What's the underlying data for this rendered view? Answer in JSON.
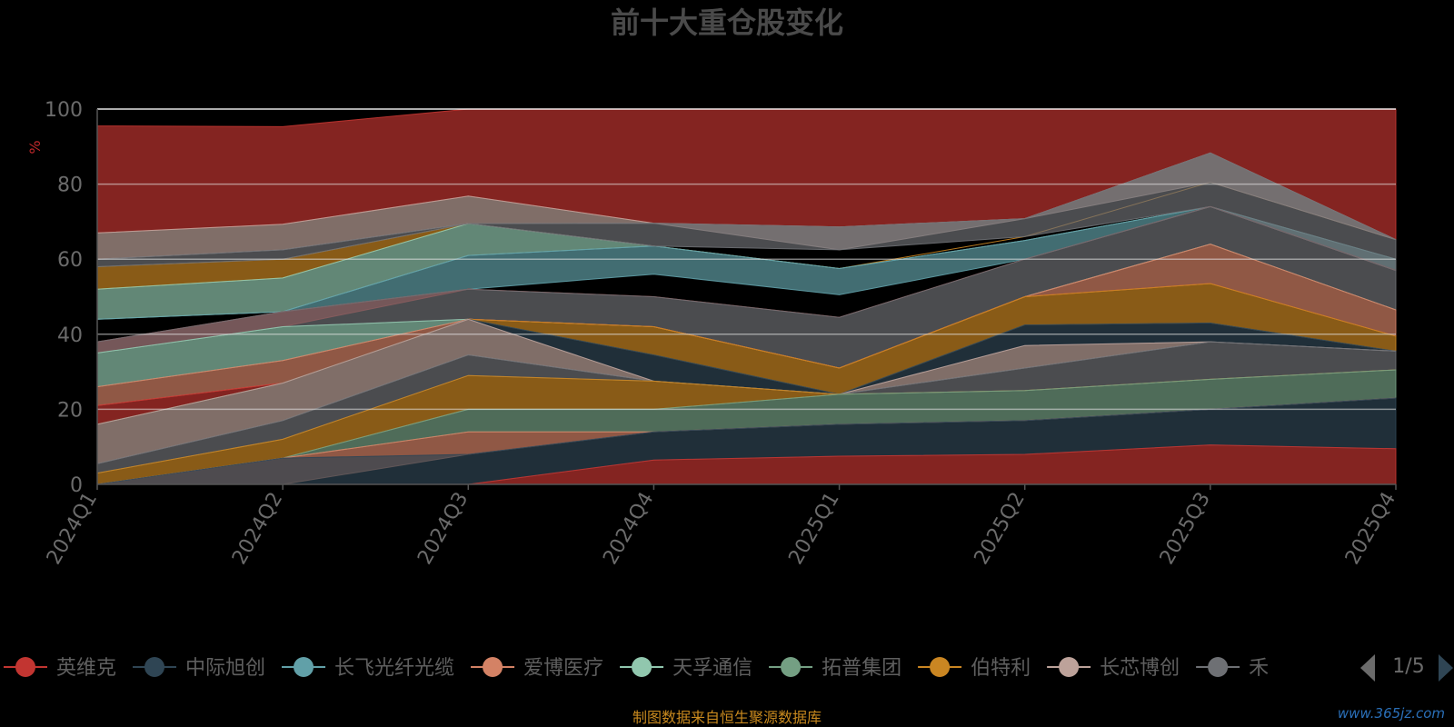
{
  "chart_data": {
    "type": "area",
    "title": "前十大重仓股变化",
    "ylabel": "%",
    "ylim": [
      0,
      100
    ],
    "yticks": [
      0,
      20,
      40,
      60,
      80,
      100
    ],
    "categories": [
      "2024Q1",
      "2024Q2",
      "2024Q3",
      "2024Q4",
      "2025Q1",
      "2025Q2",
      "2025Q3",
      "2025Q4"
    ],
    "stacked": true,
    "grid": true,
    "legend_position": "bottom",
    "bands": [
      {
        "color": "#c23531",
        "upper": [
          95.5,
          95.3,
          100,
          100,
          100,
          100,
          100,
          100
        ],
        "lower": [
          67.0,
          69.3,
          76.8,
          69.6,
          68.6,
          70.8,
          88.3,
          65.2
        ]
      },
      {
        "color": "#ca8622",
        "upper": [
          58.0,
          60.0,
          69.5,
          63.5,
          57.5,
          66.0,
          80.5,
          65.2
        ],
        "lower": [
          52.0,
          55.0,
          69.5,
          63.5,
          57.5,
          66.0,
          80.5,
          65.2
        ]
      },
      {
        "color": "#91c7ae",
        "upper": [
          52.0,
          55.0,
          69.5,
          63.5,
          57.5,
          65.0,
          74.0,
          60.0
        ],
        "lower": [
          44.0,
          46.0,
          61.0,
          63.5,
          57.5,
          65.0,
          74.0,
          60.0
        ]
      },
      {
        "color": "#61a0a8",
        "upper": [
          44.0,
          46.0,
          61.0,
          63.5,
          57.5,
          65.0,
          74.0,
          60.0
        ],
        "lower": [
          44.0,
          46.0,
          52.0,
          56.0,
          50.5,
          60.0,
          74.0,
          57.0
        ]
      },
      {
        "color": "#bda29a",
        "upper": [
          67.0,
          69.3,
          76.8,
          69.6,
          68.6,
          70.8,
          88.3,
          65.2
        ],
        "lower": [
          60.0,
          62.5,
          69.5,
          69.6,
          62.5,
          70.8,
          80.5,
          65.2
        ]
      },
      {
        "color": "#6e7074",
        "upper": [
          60.0,
          62.5,
          69.5,
          69.6,
          68.6,
          70.8,
          88.3,
          65.2
        ],
        "lower": [
          58.0,
          60.0,
          69.5,
          63.5,
          62.5,
          66.0,
          74.0,
          57.0
        ]
      },
      {
        "color": "#c23531",
        "upper": [
          38.0,
          46.0,
          52.0,
          50.0,
          44.5,
          60.0,
          74.0,
          57.0
        ],
        "lower": [
          35.0,
          42.0,
          52.0,
          50.0,
          44.5,
          60.0,
          74.0,
          57.0
        ]
      },
      {
        "color": "#6e7074",
        "upper": [
          38.0,
          46.0,
          52.0,
          50.0,
          44.5,
          60.0,
          74.0,
          57.0
        ],
        "lower": [
          35.0,
          42.0,
          44.0,
          42.0,
          31.0,
          50.0,
          64.0,
          46.5
        ]
      },
      {
        "color": "#91c7ae",
        "upper": [
          35.0,
          42.0,
          44.0,
          42.0,
          31.0,
          50.0,
          64.0,
          46.5
        ],
        "lower": [
          26.0,
          33.0,
          44.0,
          42.0,
          31.0,
          50.0,
          64.0,
          46.5
        ]
      },
      {
        "color": "#d48265",
        "upper": [
          26.0,
          33.0,
          44.0,
          42.0,
          31.0,
          50.0,
          64.0,
          46.5
        ],
        "lower": [
          21.0,
          27.0,
          44.0,
          42.0,
          31.0,
          50.0,
          53.5,
          39.5
        ]
      },
      {
        "color": "#c23531",
        "upper": [
          21.0,
          27.0,
          44.0,
          42.0,
          31.0,
          50.0,
          53.5,
          39.5
        ],
        "lower": [
          16.0,
          27.0,
          44.0,
          42.0,
          31.0,
          50.0,
          53.5,
          39.5
        ]
      },
      {
        "color": "#ca8622",
        "upper": [
          16.0,
          27.0,
          44.0,
          42.0,
          31.0,
          50.0,
          53.5,
          39.5
        ],
        "lower": [
          16.0,
          27.0,
          44.0,
          34.5,
          24.0,
          42.5,
          43.0,
          35.5
        ]
      },
      {
        "color": "#2f4554",
        "upper": [
          16.0,
          27.0,
          44.0,
          34.5,
          24.0,
          42.5,
          43.0,
          35.5
        ],
        "lower": [
          16.0,
          27.0,
          44.0,
          27.5,
          24.0,
          37.0,
          38.0,
          35.5
        ]
      },
      {
        "color": "#bda29a",
        "upper": [
          16.0,
          27.0,
          44.0,
          27.5,
          24.0,
          37.0,
          38.0,
          35.5
        ],
        "lower": [
          5.5,
          17.0,
          34.5,
          27.5,
          24.0,
          31.0,
          38.0,
          35.5
        ]
      },
      {
        "color": "#6e7074",
        "upper": [
          5.5,
          17.0,
          34.5,
          27.5,
          24.0,
          31.0,
          38.0,
          35.5
        ],
        "lower": [
          3.0,
          12.0,
          29.0,
          27.5,
          24.0,
          25.0,
          28.0,
          30.5
        ]
      },
      {
        "color": "#ca8622",
        "upper": [
          3.0,
          12.0,
          29.0,
          27.5,
          24.0,
          25.0,
          28.0,
          30.5
        ],
        "lower": [
          0,
          7.0,
          20.0,
          20.0,
          24.0,
          25.0,
          28.0,
          30.5
        ]
      },
      {
        "color": "#749f83",
        "upper": [
          0,
          7.0,
          20.0,
          20.0,
          24.0,
          25.0,
          28.0,
          30.5
        ],
        "lower": [
          0,
          7.0,
          14.0,
          14.0,
          16.0,
          17.0,
          20.0,
          23.0
        ]
      },
      {
        "color": "#d48265",
        "upper": [
          0,
          7.0,
          14.0,
          14.0,
          16.0,
          17.0,
          20.0,
          23.0
        ],
        "lower": [
          0,
          0,
          8.0,
          14.0,
          16.0,
          17.0,
          20.0,
          23.0
        ]
      },
      {
        "color": "#2f4554",
        "upper": [
          0,
          7.0,
          8.0,
          14.0,
          16.0,
          17.0,
          20.0,
          23.0
        ],
        "lower": [
          0,
          0,
          0,
          6.5,
          7.5,
          8.0,
          10.5,
          9.5
        ]
      },
      {
        "color": "#c23531",
        "upper": [
          0,
          0,
          0,
          6.5,
          7.5,
          8.0,
          10.5,
          9.5
        ],
        "lower": [
          0,
          0,
          0,
          0,
          0,
          0,
          0,
          0
        ]
      }
    ]
  },
  "legend": {
    "items": [
      {
        "label": "英维克",
        "color": "#c23531"
      },
      {
        "label": "中际旭创",
        "color": "#2f4554"
      },
      {
        "label": "长飞光纤光缆",
        "color": "#61a0a8"
      },
      {
        "label": "爱博医疗",
        "color": "#d48265"
      },
      {
        "label": "天孚通信",
        "color": "#91c7ae"
      },
      {
        "label": "拓普集团",
        "color": "#749f83"
      },
      {
        "label": "伯特利",
        "color": "#ca8622"
      },
      {
        "label": "长芯博创",
        "color": "#bda29a"
      },
      {
        "label": "禾",
        "color": "#6e7074"
      }
    ],
    "page_indicator": "1/5"
  },
  "footer": {
    "source": "制图数据来自恒生聚源数据库",
    "watermark": "www.365jz.com"
  }
}
